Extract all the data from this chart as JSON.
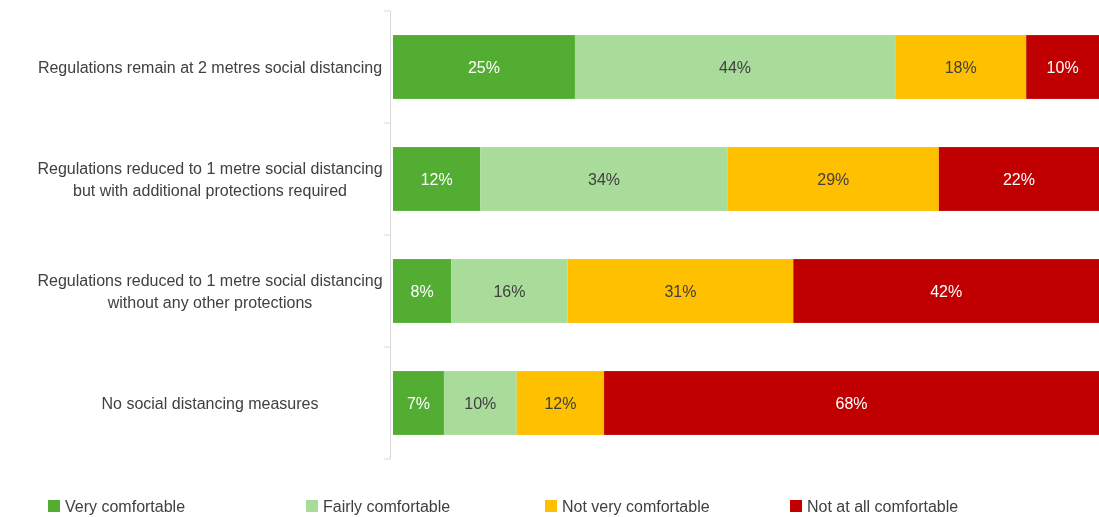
{
  "chart_data": {
    "type": "bar",
    "orientation": "horizontal",
    "stacked": true,
    "legend": "bottom",
    "categories": [
      "Regulations remain at 2 metres social distancing",
      "Regulations reduced to 1 metre social distancing but with additional protections required",
      "Regulations reduced to 1 metre social distancing without any other protections",
      "No social distancing measures"
    ],
    "series": [
      {
        "name": "Very comfortable",
        "color": "#53ad33",
        "values": [
          25,
          12,
          8,
          7
        ],
        "value_labels": [
          "25%",
          "12%",
          "8%",
          "7%"
        ]
      },
      {
        "name": "Fairly comfortable",
        "color": "#a9dc9b",
        "values": [
          44,
          34,
          16,
          10
        ],
        "value_labels": [
          "44%",
          "34%",
          "16%",
          "10%"
        ]
      },
      {
        "name": "Not very comfortable",
        "color": "#ffc000",
        "values": [
          18,
          29,
          31,
          12
        ],
        "value_labels": [
          "18%",
          "29%",
          "31%",
          "12%"
        ]
      },
      {
        "name": "Not at all comfortable",
        "color": "#c00000",
        "values": [
          10,
          22,
          42,
          68
        ],
        "value_labels": [
          "10%",
          "22%",
          "42%",
          "68%"
        ]
      }
    ]
  }
}
